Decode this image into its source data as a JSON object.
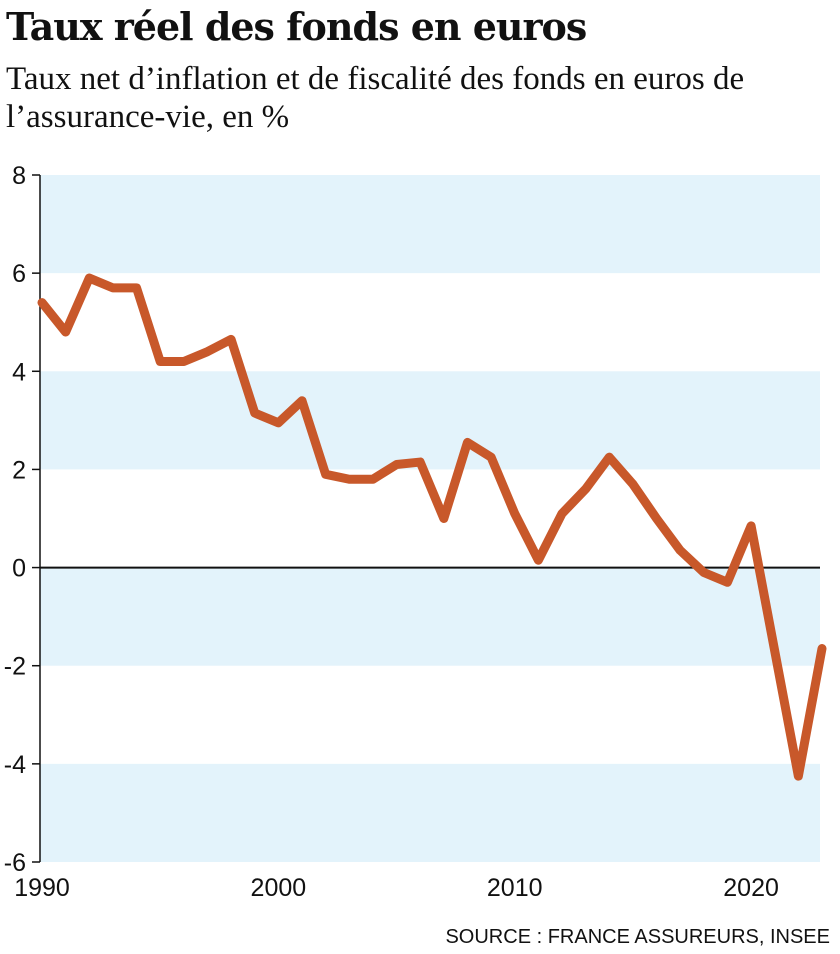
{
  "title": "Taux réel des fonds en euros",
  "subtitle": "Taux net d’inflation et de fiscalité des fonds en euros de l’assurance-vie, en %",
  "source": "SOURCE :  FRANCE ASSUREURS, INSEE",
  "colors": {
    "line": "#c8582a",
    "band": "#e3f3fb",
    "zero_line": "#111111"
  },
  "chart_data": {
    "type": "line",
    "title": "Taux réel des fonds en euros",
    "xlabel": "",
    "ylabel": "",
    "xlim": [
      1990,
      2023
    ],
    "ylim": [
      -6,
      8
    ],
    "x_ticks": [
      1990,
      2000,
      2010,
      2020
    ],
    "y_ticks": [
      8,
      6,
      4,
      2,
      0,
      -2,
      -4,
      -6
    ],
    "grid": "alternating horizontal bands",
    "x": [
      1990,
      1991,
      1992,
      1993,
      1994,
      1995,
      1996,
      1997,
      1998,
      1999,
      2000,
      2001,
      2002,
      2003,
      2004,
      2005,
      2006,
      2007,
      2008,
      2009,
      2010,
      2011,
      2012,
      2013,
      2014,
      2015,
      2016,
      2017,
      2018,
      2019,
      2020,
      2021,
      2022,
      2023
    ],
    "values": [
      5.4,
      4.8,
      5.9,
      5.7,
      5.7,
      4.2,
      4.2,
      4.4,
      4.65,
      3.15,
      2.95,
      3.4,
      1.9,
      1.8,
      1.8,
      2.1,
      2.15,
      1.0,
      2.55,
      2.25,
      1.1,
      0.15,
      1.1,
      1.6,
      2.25,
      1.7,
      1.0,
      0.35,
      -0.1,
      -0.3,
      0.85,
      -1.7,
      -4.25,
      -1.65
    ]
  }
}
